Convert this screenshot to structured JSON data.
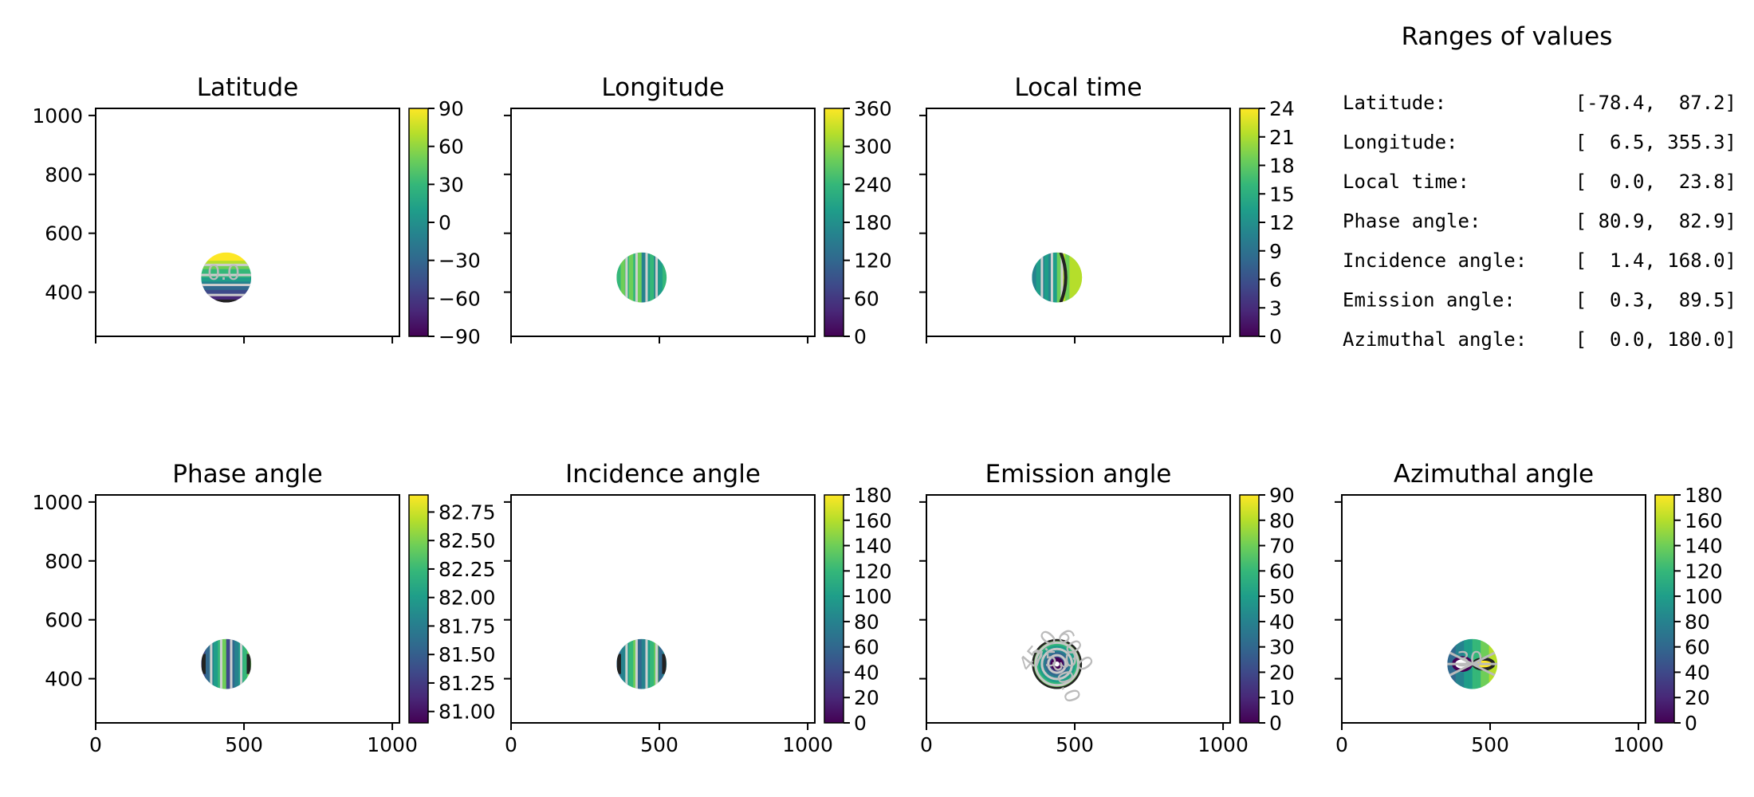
{
  "colors": {
    "viridis": [
      "#440154",
      "#482878",
      "#3e4989",
      "#31688e",
      "#26828e",
      "#1f9e89",
      "#35b779",
      "#6ece58",
      "#b5de2b",
      "#fde725"
    ],
    "axis": "#000000"
  },
  "chart_data": [
    {
      "type": "heatmap",
      "title": "Latitude",
      "xlim": [
        0,
        1024
      ],
      "ylim": [
        250,
        1024
      ],
      "xticks": [
        0,
        500,
        1000
      ],
      "yticks": [
        400,
        600,
        800,
        1000
      ],
      "x_ticklabels": false,
      "y_ticklabels": true,
      "disk": {
        "cx": 440,
        "cy": 450,
        "r": 85
      },
      "pattern": "horizontal",
      "colorbar": {
        "min": -90,
        "max": 90,
        "ticks": [
          "−90",
          "−60",
          "−30",
          "0",
          "30",
          "60",
          "90"
        ]
      },
      "contour_labels": [
        "0.0"
      ]
    },
    {
      "type": "heatmap",
      "title": "Longitude",
      "xlim": [
        0,
        1024
      ],
      "ylim": [
        250,
        1024
      ],
      "xticks": [
        0,
        500,
        1000
      ],
      "yticks": [
        400,
        600,
        800,
        1000
      ],
      "x_ticklabels": false,
      "y_ticklabels": false,
      "disk": {
        "cx": 440,
        "cy": 450,
        "r": 85
      },
      "pattern": "vertical",
      "colorbar": {
        "min": 0,
        "max": 360,
        "ticks": [
          "0",
          "60",
          "120",
          "180",
          "240",
          "300",
          "360"
        ]
      },
      "contour_labels": []
    },
    {
      "type": "heatmap",
      "title": "Local time",
      "xlim": [
        0,
        1024
      ],
      "ylim": [
        250,
        1024
      ],
      "xticks": [
        0,
        500,
        1000
      ],
      "yticks": [
        400,
        600,
        800,
        1000
      ],
      "x_ticklabels": false,
      "y_ticklabels": false,
      "disk": {
        "cx": 440,
        "cy": 450,
        "r": 85
      },
      "pattern": "vertical",
      "colorbar": {
        "min": 0,
        "max": 24,
        "ticks": [
          "0",
          "3",
          "6",
          "9",
          "12",
          "15",
          "18",
          "21",
          "24"
        ]
      },
      "contour_labels": []
    },
    {
      "type": "heatmap",
      "title": "Phase angle",
      "xlim": [
        0,
        1024
      ],
      "ylim": [
        250,
        1024
      ],
      "xticks": [
        0,
        500,
        1000
      ],
      "yticks": [
        400,
        600,
        800,
        1000
      ],
      "x_ticklabels": true,
      "y_ticklabels": true,
      "disk": {
        "cx": 440,
        "cy": 450,
        "r": 85
      },
      "pattern": "vertical",
      "colorbar": {
        "min": 80.9,
        "max": 82.9,
        "ticks": [
          "81.00",
          "81.25",
          "81.50",
          "81.75",
          "82.00",
          "82.25",
          "82.50",
          "82.75"
        ],
        "tick_values": [
          81.0,
          81.25,
          81.5,
          81.75,
          82.0,
          82.25,
          82.5,
          82.75
        ]
      },
      "contour_labels": []
    },
    {
      "type": "heatmap",
      "title": "Incidence angle",
      "xlim": [
        0,
        1024
      ],
      "ylim": [
        250,
        1024
      ],
      "xticks": [
        0,
        500,
        1000
      ],
      "yticks": [
        400,
        600,
        800,
        1000
      ],
      "x_ticklabels": true,
      "y_ticklabels": false,
      "disk": {
        "cx": 440,
        "cy": 450,
        "r": 85
      },
      "pattern": "vertical",
      "colorbar": {
        "min": 0,
        "max": 180,
        "ticks": [
          "0",
          "20",
          "40",
          "60",
          "80",
          "100",
          "120",
          "140",
          "160",
          "180"
        ]
      },
      "contour_labels": []
    },
    {
      "type": "heatmap",
      "title": "Emission angle",
      "xlim": [
        0,
        1024
      ],
      "ylim": [
        250,
        1024
      ],
      "xticks": [
        0,
        500,
        1000
      ],
      "yticks": [
        400,
        600,
        800,
        1000
      ],
      "x_ticklabels": true,
      "y_ticklabels": false,
      "disk": {
        "cx": 440,
        "cy": 450,
        "r": 85
      },
      "pattern": "radial",
      "colorbar": {
        "min": 0,
        "max": 90,
        "ticks": [
          "0",
          "10",
          "20",
          "30",
          "40",
          "50",
          "60",
          "70",
          "80",
          "90"
        ]
      },
      "contour_labels": [
        "75.0",
        "60.0",
        "45.0",
        "30.0"
      ]
    },
    {
      "type": "heatmap",
      "title": "Azimuthal angle",
      "xlim": [
        0,
        1024
      ],
      "ylim": [
        250,
        1024
      ],
      "xticks": [
        0,
        500,
        1000
      ],
      "yticks": [
        400,
        600,
        800,
        1000
      ],
      "x_ticklabels": true,
      "y_ticklabels": false,
      "disk": {
        "cx": 440,
        "cy": 450,
        "r": 85
      },
      "pattern": "azimuthal",
      "colorbar": {
        "min": 0,
        "max": 180,
        "ticks": [
          "0",
          "20",
          "40",
          "60",
          "80",
          "100",
          "120",
          "140",
          "160",
          "180"
        ]
      },
      "contour_labels": [
        "30"
      ]
    }
  ],
  "ranges": {
    "title": "Ranges of values",
    "rows": [
      {
        "label": "Latitude:",
        "value": "[-78.4,  87.2]"
      },
      {
        "label": "Longitude:",
        "value": "[  6.5, 355.3]"
      },
      {
        "label": "Local time:",
        "value": "[  0.0,  23.8]"
      },
      {
        "label": "Phase angle:",
        "value": "[ 80.9,  82.9]"
      },
      {
        "label": "Incidence angle:",
        "value": "[  1.4, 168.0]"
      },
      {
        "label": "Emission angle:",
        "value": "[  0.3,  89.5]"
      },
      {
        "label": "Azimuthal angle:",
        "value": "[  0.0, 180.0]"
      }
    ]
  }
}
